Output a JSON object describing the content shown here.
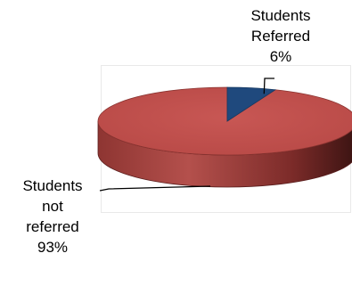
{
  "chart_data": {
    "type": "pie",
    "style": "3d",
    "slices": [
      {
        "label_lines": [
          "Students",
          "Referred"
        ],
        "value": 6,
        "pct_label": "6%",
        "color": "#1f497d"
      },
      {
        "label_lines": [
          "Students",
          "not",
          "referred"
        ],
        "value": 93,
        "pct_label": "93%",
        "color": "#c0504d"
      }
    ],
    "legend": "none"
  }
}
